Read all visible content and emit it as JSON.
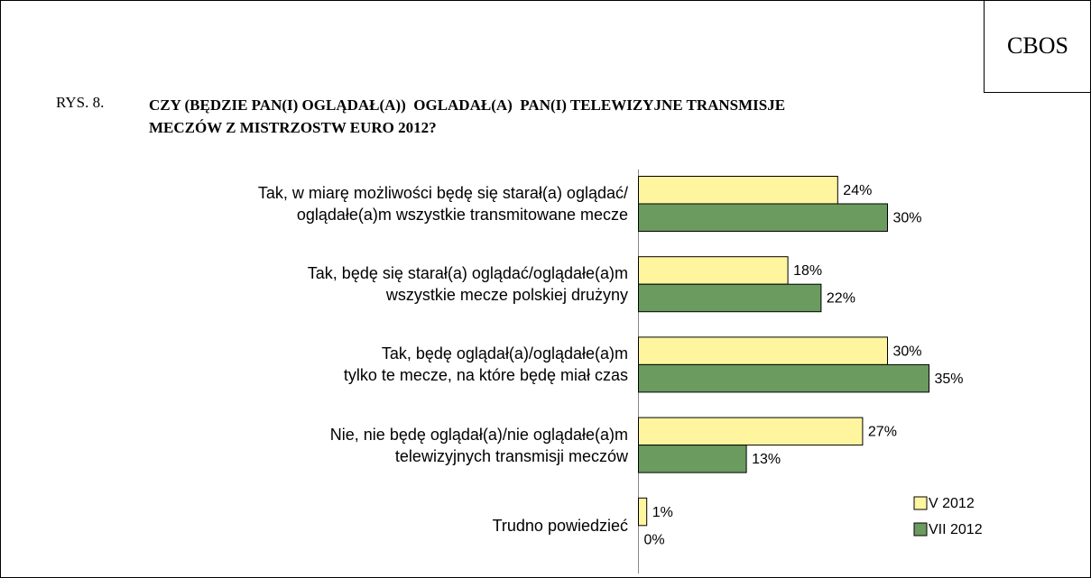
{
  "chart_data": {
    "type": "bar",
    "orientation": "horizontal",
    "brand": "CBOS",
    "figure_label": "RYS. 8.",
    "title": "CZY (BĘDZIE PAN(I) OGLĄDAŁ(A))  OGLADAŁ(A)  PAN(I) TELEWIZYJNE TRANSMISJE\nMECZÓW Z MISTRZOSTW EURO 2012?",
    "categories": [
      "Tak, w miarę możliwości będę się starał(a) oglądać/\noglądałe(a)m wszystkie transmitowane mecze",
      "Tak, będę się starał(a) oglądać/oglądałe(a)m\nwszystkie mecze polskiej drużyny",
      "Tak, będę oglądał(a)/oglądałe(a)m\ntylko te mecze, na które będę miał czas",
      "Nie, nie będę oglądał(a)/nie oglądałe(a)m\ntelewizyjnych transmisji meczów",
      "Trudno powiedzieć"
    ],
    "series": [
      {
        "name": "V 2012",
        "color": "#fff59f",
        "values": [
          24,
          18,
          30,
          27,
          1
        ],
        "value_labels": [
          "24%",
          "18%",
          "30%",
          "27%",
          "1%"
        ]
      },
      {
        "name": "VII 2012",
        "color": "#6b9b5f",
        "values": [
          30,
          22,
          35,
          13,
          0
        ],
        "value_labels": [
          "30%",
          "22%",
          "35%",
          "13%",
          "0%"
        ]
      }
    ],
    "xlim": [
      0,
      40
    ],
    "legend": "bottom-right"
  }
}
